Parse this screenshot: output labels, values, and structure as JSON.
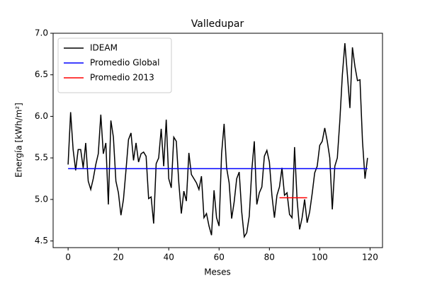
{
  "chart_data": {
    "type": "line",
    "title": "Valledupar",
    "xlabel": "Meses",
    "ylabel": "Energía [kWh/m²]",
    "xlim": [
      -5.95,
      124.95
    ],
    "ylim": [
      4.42,
      7.0
    ],
    "xticks": [
      0,
      20,
      40,
      60,
      80,
      100,
      120
    ],
    "yticks": [
      4.5,
      {
        "value": 5,
        "label": "5.0"
      },
      5.5,
      {
        "value": 6,
        "label": "6.0"
      },
      6.5,
      {
        "value": 7,
        "label": "7.0"
      }
    ],
    "legend": "upper left",
    "series": [
      {
        "name": "IDEAM",
        "color": "#000000",
        "x": [
          0,
          1,
          2,
          3,
          4,
          5,
          6,
          7,
          8,
          9,
          10,
          11,
          12,
          13,
          14,
          15,
          16,
          17,
          18,
          19,
          20,
          21,
          22,
          23,
          24,
          25,
          26,
          27,
          28,
          29,
          30,
          31,
          32,
          33,
          34,
          35,
          36,
          37,
          38,
          39,
          40,
          41,
          42,
          43,
          44,
          45,
          46,
          47,
          48,
          49,
          50,
          51,
          52,
          53,
          54,
          55,
          56,
          57,
          58,
          59,
          60,
          61,
          62,
          63,
          64,
          65,
          66,
          67,
          68,
          69,
          70,
          71,
          72,
          73,
          74,
          75,
          76,
          77,
          78,
          79,
          80,
          81,
          82,
          83,
          84,
          85,
          86,
          87,
          88,
          89,
          90,
          91,
          92,
          93,
          94,
          95,
          96,
          97,
          98,
          99,
          100,
          101,
          102,
          103,
          104,
          105,
          106,
          107,
          108,
          109,
          110,
          111,
          112,
          113,
          114,
          115,
          116,
          117,
          118,
          119
        ],
        "values": [
          5.42,
          6.05,
          5.6,
          5.35,
          5.6,
          5.6,
          5.38,
          5.68,
          5.22,
          5.12,
          5.25,
          5.42,
          5.55,
          6.02,
          5.55,
          5.68,
          4.94,
          5.95,
          5.75,
          5.22,
          5.08,
          4.81,
          5.0,
          5.35,
          5.72,
          5.8,
          5.47,
          5.68,
          5.45,
          5.55,
          5.57,
          5.52,
          5.01,
          5.03,
          4.71,
          5.43,
          5.5,
          5.85,
          5.4,
          5.96,
          5.25,
          5.14,
          5.75,
          5.7,
          5.2,
          4.83,
          5.1,
          4.98,
          5.56,
          5.3,
          5.25,
          5.2,
          5.12,
          5.28,
          4.78,
          4.83,
          4.68,
          4.57,
          5.11,
          4.78,
          4.68,
          5.55,
          5.91,
          5.38,
          5.2,
          4.77,
          4.97,
          5.25,
          5.33,
          4.85,
          4.55,
          4.6,
          4.8,
          5.35,
          5.7,
          4.94,
          5.08,
          5.15,
          5.52,
          5.59,
          5.45,
          5.05,
          4.78,
          5.05,
          5.15,
          5.38,
          5.05,
          5.08,
          4.82,
          4.78,
          5.63,
          5.0,
          4.64,
          4.78,
          5.0,
          4.72,
          4.85,
          5.07,
          5.32,
          5.4,
          5.65,
          5.7,
          5.86,
          5.7,
          5.5,
          4.88,
          5.4,
          5.5,
          5.95,
          6.5,
          6.88,
          6.5,
          6.1,
          6.83,
          6.6,
          6.43,
          6.44,
          5.7,
          5.25,
          5.5
        ]
      },
      {
        "name": "Promedio Global",
        "color": "#0000ff",
        "x": [
          0,
          119
        ],
        "values": [
          5.37,
          5.37
        ]
      },
      {
        "name": "Promedio 2013",
        "color": "#ff0000",
        "x": [
          84,
          95
        ],
        "values": [
          5.02,
          5.02
        ]
      }
    ]
  }
}
